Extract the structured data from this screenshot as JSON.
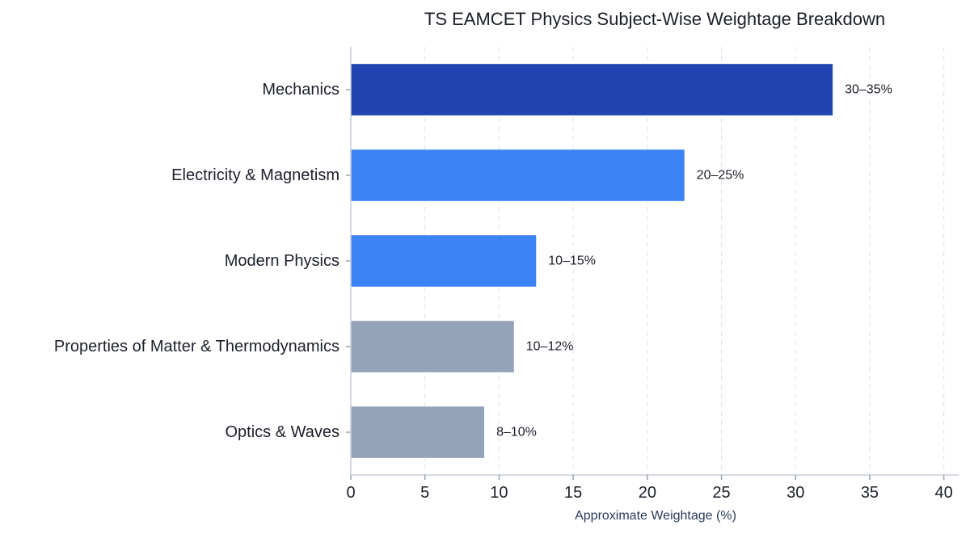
{
  "chart_data": {
    "type": "bar",
    "orientation": "horizontal",
    "title": "TS EAMCET Physics Subject-Wise Weightage Breakdown",
    "xlabel": "Approximate Weightage (%)",
    "ylabel": "",
    "xlim": [
      0,
      41
    ],
    "xticks": [
      0,
      5,
      10,
      15,
      20,
      25,
      30,
      35,
      40
    ],
    "grid": "vertical-dashed",
    "categories": [
      "Mechanics",
      "Electricity & Magnetism",
      "Modern Physics",
      "Properties of Matter & Thermodynamics",
      "Optics & Waves"
    ],
    "values": [
      32.5,
      22.5,
      12.5,
      11,
      9
    ],
    "value_labels": [
      "30–35%",
      "20–25%",
      "10–15%",
      "10–12%",
      "8–10%"
    ],
    "colors": [
      "#1f44b0",
      "#3b82f6",
      "#3b82f6",
      "#94a3b8",
      "#94a3b8"
    ]
  }
}
